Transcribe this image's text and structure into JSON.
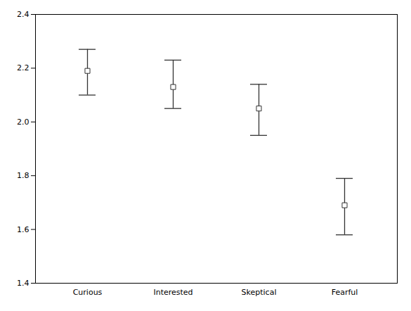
{
  "chart_data": {
    "type": "errorbar",
    "categories": [
      "Curious",
      "Interested",
      "Skeptical",
      "Fearful"
    ],
    "values": [
      2.19,
      2.13,
      2.05,
      1.69
    ],
    "ci_lower": [
      2.1,
      2.05,
      1.95,
      1.58
    ],
    "ci_upper": [
      2.27,
      2.23,
      2.14,
      1.79
    ],
    "ylim": [
      1.4,
      2.4
    ],
    "yticks": [
      1.4,
      1.6,
      1.8,
      {
        "value": 2.0,
        "label": "2.0"
      },
      2.2,
      2.4
    ],
    "color": "#333333",
    "marker": "square"
  }
}
